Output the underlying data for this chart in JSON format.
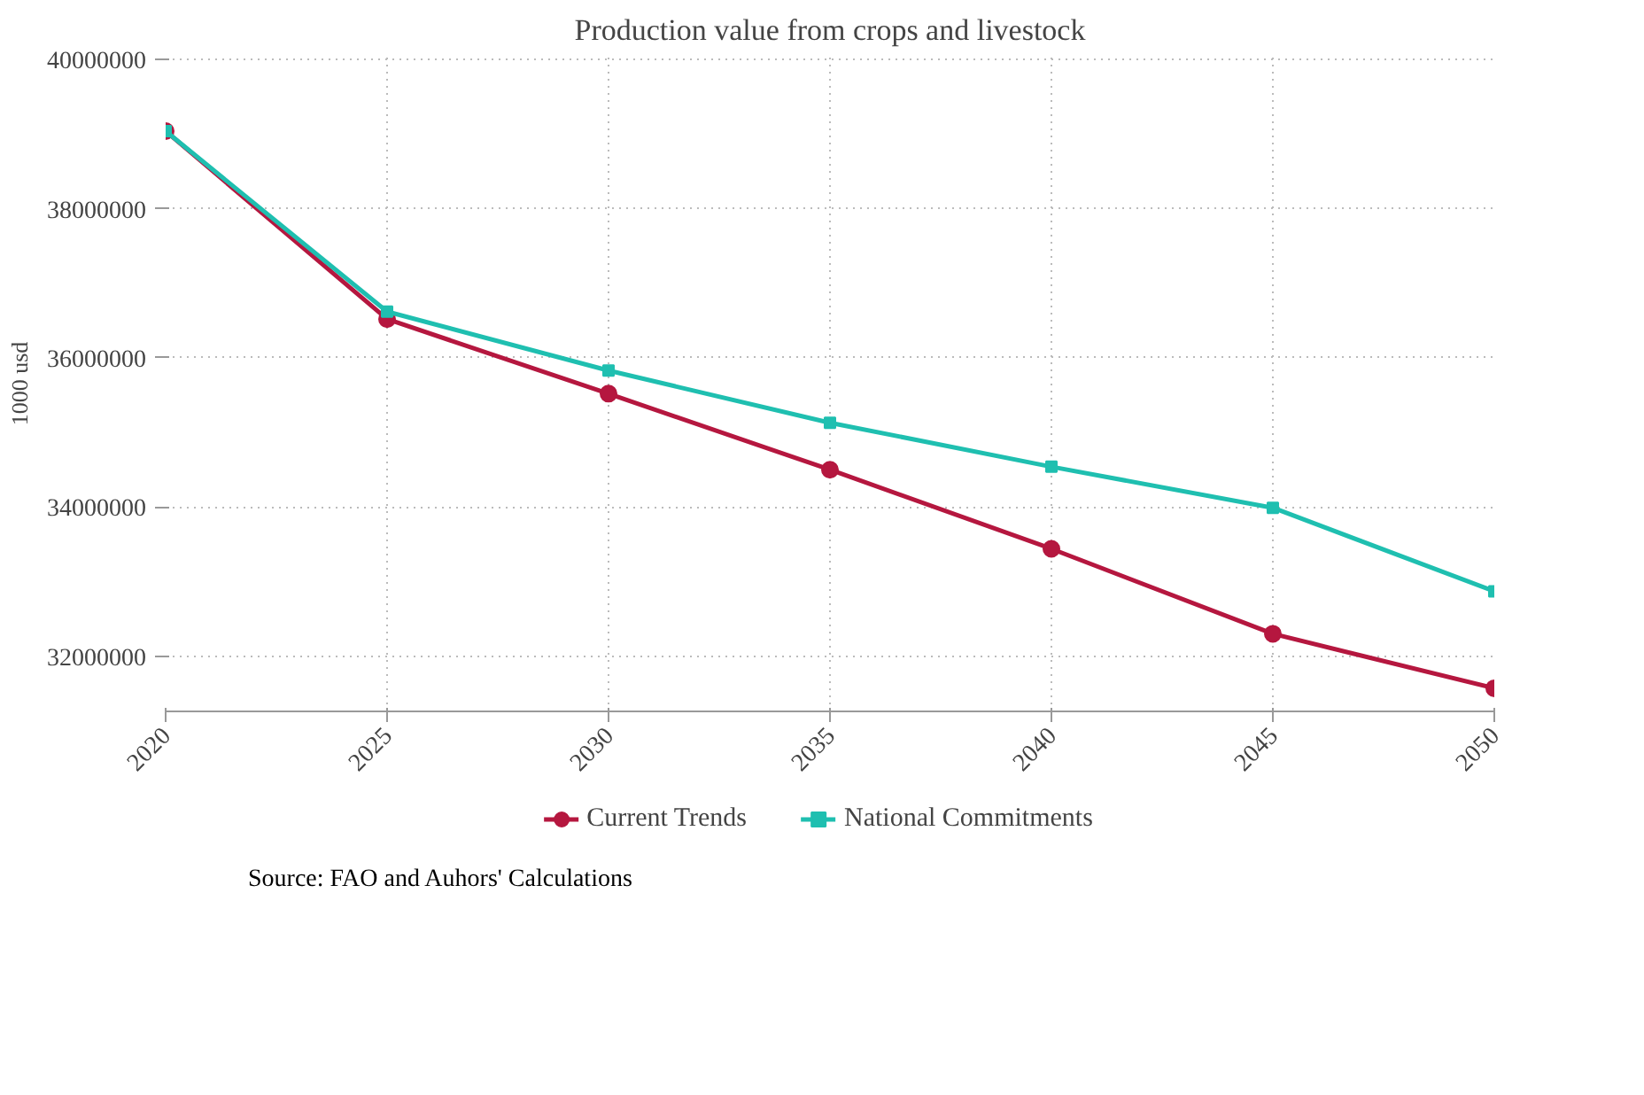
{
  "chart_data": {
    "type": "line",
    "title": "Production value from crops and livestock",
    "ylabel": "1000 usd",
    "x": [
      2020,
      2025,
      2030,
      2035,
      2040,
      2045,
      2050
    ],
    "series": [
      {
        "name": "Current Trends",
        "color": "#b5173f",
        "marker": "circle",
        "values": [
          39040000,
          36520000,
          35520000,
          34500000,
          33440000,
          32300000,
          31570000
        ]
      },
      {
        "name": "National Commitments",
        "color": "#1fbfb0",
        "marker": "square",
        "values": [
          39040000,
          36620000,
          35830000,
          35130000,
          34540000,
          33990000,
          32870000
        ]
      }
    ],
    "xlim": [
      2020,
      2050
    ],
    "xticks": [
      2020,
      2025,
      2030,
      2035,
      2040,
      2045,
      2050
    ],
    "ylim": [
      31260000,
      40050000
    ],
    "yticks": [
      32000000,
      34000000,
      36000000,
      38000000,
      40000000
    ],
    "grid": true,
    "legend": "bottom",
    "annotations": [
      "Source: FAO and Auhors' Calculations"
    ]
  }
}
